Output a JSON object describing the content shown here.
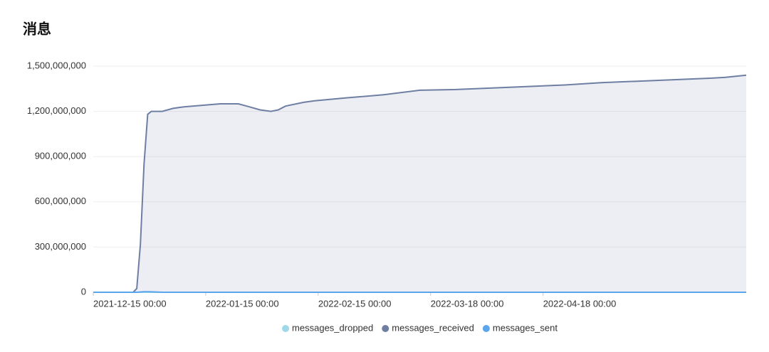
{
  "chart_data": {
    "type": "area",
    "title": "消息",
    "x": [
      "2021-12-15 00:00",
      "2021-12-26 00:00",
      "2021-12-27 00:00",
      "2021-12-28 00:00",
      "2021-12-29 00:00",
      "2021-12-30 00:00",
      "2021-12-31 00:00",
      "2022-01-03 00:00",
      "2022-01-06 00:00",
      "2022-01-09 00:00",
      "2022-01-14 00:00",
      "2022-01-19 00:00",
      "2022-01-24 00:00",
      "2022-01-27 00:00",
      "2022-01-30 00:00",
      "2022-02-02 00:00",
      "2022-02-04 00:00",
      "2022-02-06 00:00",
      "2022-02-11 00:00",
      "2022-02-14 00:00",
      "2022-02-23 00:00",
      "2022-03-05 00:00",
      "2022-03-15 00:00",
      "2022-03-25 00:00",
      "2022-04-04 00:00",
      "2022-04-14 00:00",
      "2022-04-24 00:00",
      "2022-05-04 00:00",
      "2022-05-14 00:00",
      "2022-05-24 00:00",
      "2022-06-03 00:00",
      "2022-06-07 00:00",
      "2022-06-13 00:00"
    ],
    "series": [
      {
        "name": "messages_dropped",
        "color": "#9fd8e8",
        "values": [
          0,
          0,
          0,
          0,
          0,
          0,
          0,
          0,
          0,
          0,
          0,
          0,
          0,
          0,
          0,
          0,
          0,
          0,
          0,
          0,
          0,
          0,
          0,
          0,
          0,
          0,
          0,
          0,
          0,
          0,
          0,
          0,
          0
        ]
      },
      {
        "name": "messages_received",
        "color": "#6e7fa3",
        "values": [
          0,
          0,
          25000000,
          320000000,
          850000000,
          1180000000,
          1200000000,
          1200000000,
          1220000000,
          1230000000,
          1240000000,
          1250000000,
          1250000000,
          1230000000,
          1210000000,
          1200000000,
          1210000000,
          1235000000,
          1260000000,
          1270000000,
          1290000000,
          1310000000,
          1340000000,
          1345000000,
          1355000000,
          1365000000,
          1375000000,
          1390000000,
          1400000000,
          1410000000,
          1420000000,
          1425000000,
          1440000000
        ]
      },
      {
        "name": "messages_sent",
        "color": "#5aa5ec",
        "values": [
          0,
          0,
          0,
          2000000,
          4000000,
          4000000,
          3000000,
          0,
          0,
          0,
          0,
          0,
          0,
          0,
          0,
          0,
          0,
          0,
          0,
          0,
          0,
          0,
          0,
          0,
          0,
          0,
          0,
          0,
          0,
          0,
          0,
          0,
          0
        ]
      }
    ],
    "xlim": [
      "2021-12-15 00:00",
      "2022-06-13 00:00"
    ],
    "xticks": [
      "2021-12-15 00:00",
      "2022-01-15 00:00",
      "2022-02-15 00:00",
      "2022-03-18 00:00",
      "2022-04-18 00:00"
    ],
    "ylim": [
      0,
      1500000000
    ],
    "yticks": [
      0,
      {
        "value": 300000000,
        "label": "300,000,000"
      },
      {
        "value": 600000000,
        "label": "600,000,000"
      },
      {
        "value": 900000000,
        "label": "900,000,000"
      },
      {
        "value": 1200000000,
        "label": "1,200,000,000"
      },
      {
        "value": 1500000000,
        "label": "1,500,000,000"
      }
    ],
    "grid": true,
    "legend": "bottom"
  }
}
